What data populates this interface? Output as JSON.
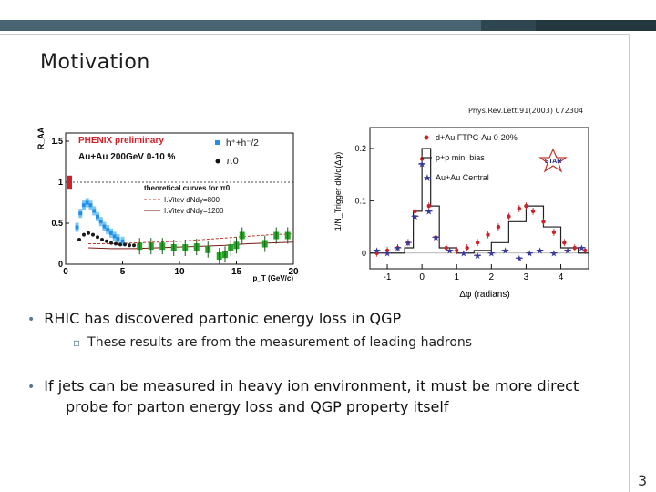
{
  "slide": {
    "title": "Motivation",
    "reference": "Phys.Rev.Lett.91(2003) 072304",
    "page_number": "3",
    "bullet1": "RHIC has discovered partonic energy loss in QGP",
    "bullet2": "These results are from the measurement of leading hadrons",
    "bullet3_line1": "If jets can be measured in heavy ion environment, it must be more direct",
    "bullet3_line2": "probe for parton energy loss and QGP property itself",
    "colors": {
      "accent": "#476470",
      "bullet": "#5a7a8a"
    }
  },
  "chart_data": [
    {
      "type": "scatter",
      "ylabel": "R_AA",
      "xlabel": "p_T (GeV/c)",
      "xlim": [
        0,
        20
      ],
      "ylim": [
        0,
        1.6
      ],
      "xticks": [
        "0",
        "5",
        "10",
        "15",
        "20"
      ],
      "yticks": [
        "0",
        "0.5",
        "1",
        "1.5"
      ],
      "labels": {
        "preliminary": "PHENIX preliminary",
        "system": "Au+Au 200GeV 0-10 %",
        "theory_header": "theoretical curves for π0",
        "theory1": "I.Vitev dNdy=800",
        "theory2": "I.Vitev dNdy=1200"
      },
      "series": [
        {
          "name": "h⁺+h⁻/2",
          "color": "#1f8fe8",
          "x": [
            1.0,
            1.3,
            1.6,
            1.9,
            2.2,
            2.5,
            2.8,
            3.1,
            3.4,
            3.7,
            4.0,
            4.3,
            4.6,
            5.0
          ],
          "y": [
            0.45,
            0.62,
            0.72,
            0.75,
            0.72,
            0.65,
            0.58,
            0.52,
            0.46,
            0.42,
            0.38,
            0.34,
            0.31,
            0.28
          ]
        },
        {
          "name": "π0",
          "color": "#1a1a1a",
          "x": [
            1.2,
            1.6,
            2.0,
            2.4,
            2.8,
            3.2,
            3.6,
            4.0,
            4.4,
            4.8,
            5.2,
            5.6,
            6.0
          ],
          "y": [
            0.3,
            0.36,
            0.38,
            0.36,
            0.33,
            0.3,
            0.28,
            0.26,
            0.25,
            0.24,
            0.24,
            0.23,
            0.23
          ]
        },
        {
          "color": "#27a527",
          "x": [
            6.5,
            7.5,
            8.5,
            9.5,
            10.5,
            11.5,
            12.5,
            13.5,
            14.0,
            14.5,
            15.0,
            15.5,
            17.5,
            18.5,
            19.5
          ],
          "y": [
            0.22,
            0.22,
            0.22,
            0.2,
            0.2,
            0.21,
            0.18,
            0.1,
            0.12,
            0.2,
            0.23,
            0.35,
            0.25,
            0.35,
            0.35
          ]
        }
      ],
      "curves": [
        {
          "name": "I.Vitev dNdy=800",
          "color": "#c0392b",
          "dash": "3,2",
          "x": [
            2,
            4,
            6,
            8,
            10,
            12,
            14,
            16,
            18,
            20
          ],
          "y": [
            0.25,
            0.25,
            0.26,
            0.27,
            0.28,
            0.3,
            0.32,
            0.34,
            0.36,
            0.37
          ]
        },
        {
          "name": "I.Vitev dNdy=1200",
          "color": "#7a1a1a",
          "dash": "",
          "x": [
            2,
            4,
            6,
            8,
            10,
            12,
            14,
            16,
            18,
            20
          ],
          "y": [
            0.2,
            0.19,
            0.19,
            0.2,
            0.21,
            0.22,
            0.23,
            0.25,
            0.26,
            0.27
          ]
        }
      ],
      "reference_line": 1.0
    },
    {
      "type": "scatter",
      "ylabel": "1/N_Trigger dN/d(Δφ)",
      "xlabel": "Δφ (radians)",
      "xlim": [
        -1.5,
        4.8
      ],
      "ylim": [
        -0.03,
        0.24
      ],
      "xticks": [
        "-1",
        "0",
        "1",
        "2",
        "3",
        "4"
      ],
      "yticks": [
        "0",
        "0.1",
        "0.2"
      ],
      "star_logo": "STAR",
      "series": [
        {
          "name": "d+Au FTPC-Au 0-20%",
          "color": "#d0202a",
          "marker": "circle",
          "x": [
            -1.3,
            -1.0,
            -0.7,
            -0.4,
            -0.2,
            0.0,
            0.2,
            0.4,
            0.7,
            1.0,
            1.3,
            1.6,
            1.9,
            2.2,
            2.5,
            2.8,
            3.0,
            3.2,
            3.5,
            3.8,
            4.1,
            4.4,
            4.7
          ],
          "y": [
            0.0,
            0.005,
            0.01,
            0.02,
            0.08,
            0.18,
            0.09,
            0.03,
            0.01,
            0.005,
            0.01,
            0.02,
            0.035,
            0.05,
            0.07,
            0.085,
            0.09,
            0.08,
            0.06,
            0.04,
            0.02,
            0.01,
            0.005
          ]
        },
        {
          "name": "p+p min. bias",
          "color": "#222222",
          "marker": "step",
          "x": [
            -1.5,
            -1.0,
            -0.5,
            -0.25,
            0.0,
            0.25,
            0.5,
            1.0,
            1.5,
            2.0,
            2.5,
            3.0,
            3.5,
            4.0,
            4.5,
            4.8
          ],
          "y": [
            0.0,
            0.0,
            0.01,
            0.08,
            0.2,
            0.09,
            0.01,
            0.0,
            0.005,
            0.02,
            0.06,
            0.09,
            0.05,
            0.01,
            0.0,
            0.0
          ]
        },
        {
          "name": "Au+Au Central",
          "color": "#3a3a9a",
          "marker": "star",
          "x": [
            -1.3,
            -1.0,
            -0.7,
            -0.4,
            -0.2,
            0.0,
            0.2,
            0.4,
            0.8,
            1.2,
            1.6,
            2.0,
            2.4,
            2.8,
            3.1,
            3.4,
            3.8,
            4.2,
            4.6
          ],
          "y": [
            0.005,
            0.0,
            0.01,
            0.02,
            0.07,
            0.17,
            0.08,
            0.03,
            0.005,
            0.0,
            -0.005,
            0.0,
            0.005,
            -0.01,
            0.0,
            0.005,
            0.0,
            0.005,
            0.01
          ]
        }
      ]
    }
  ]
}
